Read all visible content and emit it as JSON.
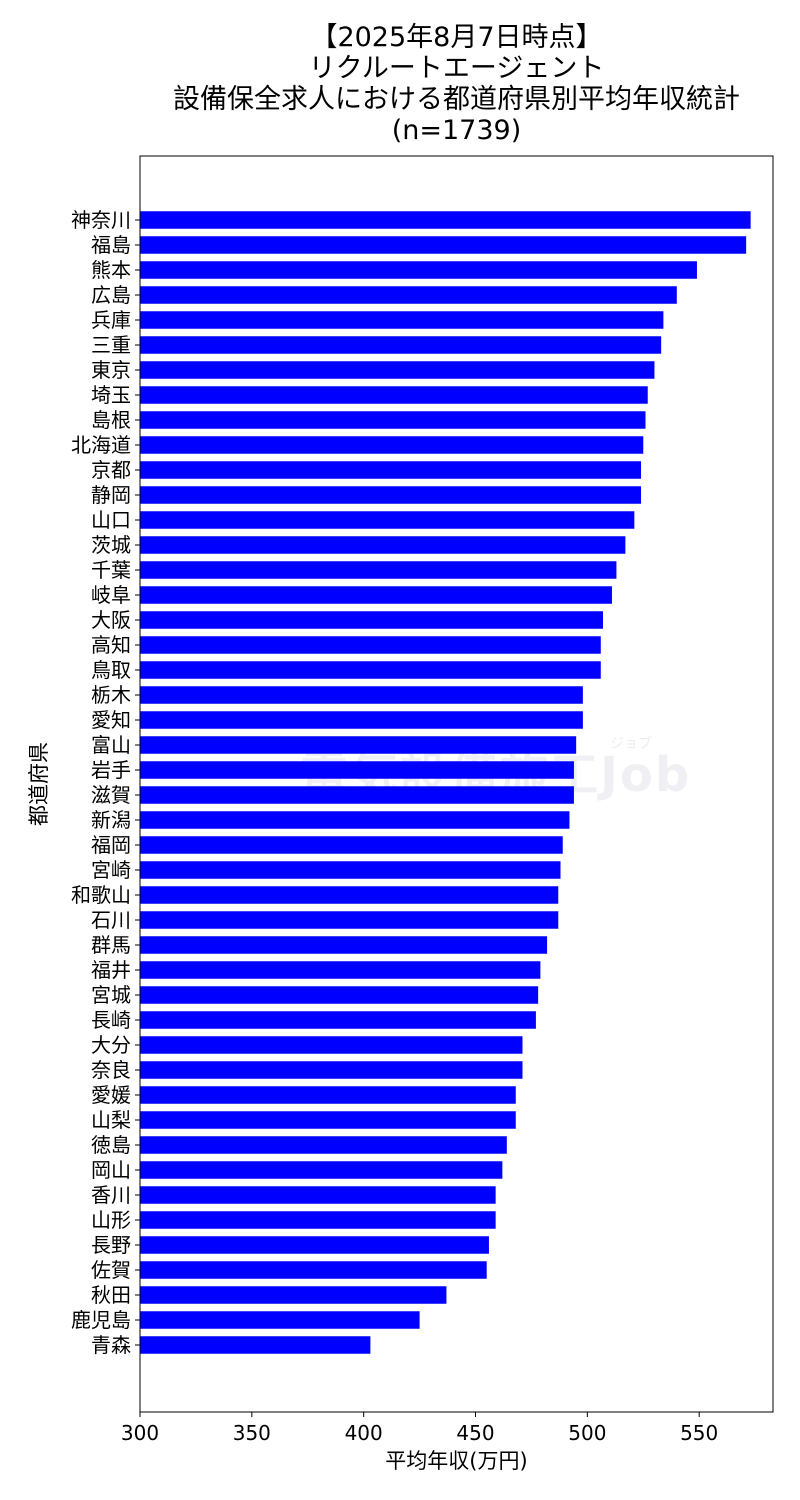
{
  "chart_data": {
    "type": "bar",
    "orientation": "horizontal",
    "title_lines": [
      "【2025年8月7日時点】",
      "リクルートエージェント",
      "設備保全求人における都道府県別平均年収統計",
      "(n=1739)"
    ],
    "xlabel": "平均年収(万円)",
    "ylabel": "都道府県",
    "xlim": [
      300,
      583
    ],
    "xticks": [
      300,
      350,
      400,
      450,
      500,
      550
    ],
    "grid": false,
    "bar_color": "#0000ff",
    "categories": [
      "神奈川",
      "福島",
      "熊本",
      "広島",
      "兵庫",
      "三重",
      "東京",
      "埼玉",
      "島根",
      "北海道",
      "京都",
      "静岡",
      "山口",
      "茨城",
      "千葉",
      "岐阜",
      "大阪",
      "高知",
      "鳥取",
      "栃木",
      "愛知",
      "富山",
      "岩手",
      "滋賀",
      "新潟",
      "福岡",
      "宮崎",
      "和歌山",
      "石川",
      "群馬",
      "福井",
      "宮城",
      "長崎",
      "大分",
      "奈良",
      "愛媛",
      "山梨",
      "徳島",
      "岡山",
      "香川",
      "山形",
      "長野",
      "佐賀",
      "秋田",
      "鹿児島",
      "青森"
    ],
    "values": [
      573,
      571,
      549,
      540,
      534,
      533,
      530,
      527,
      526,
      525,
      524,
      524,
      521,
      517,
      513,
      511,
      507,
      506,
      506,
      498,
      498,
      495,
      494,
      494,
      492,
      489,
      488,
      487,
      487,
      482,
      479,
      478,
      477,
      471,
      471,
      468,
      468,
      464,
      462,
      459,
      459,
      456,
      455,
      437,
      425,
      403
    ]
  },
  "watermark": {
    "main": "電気設備施工Job",
    "sub": "ジョブ"
  }
}
